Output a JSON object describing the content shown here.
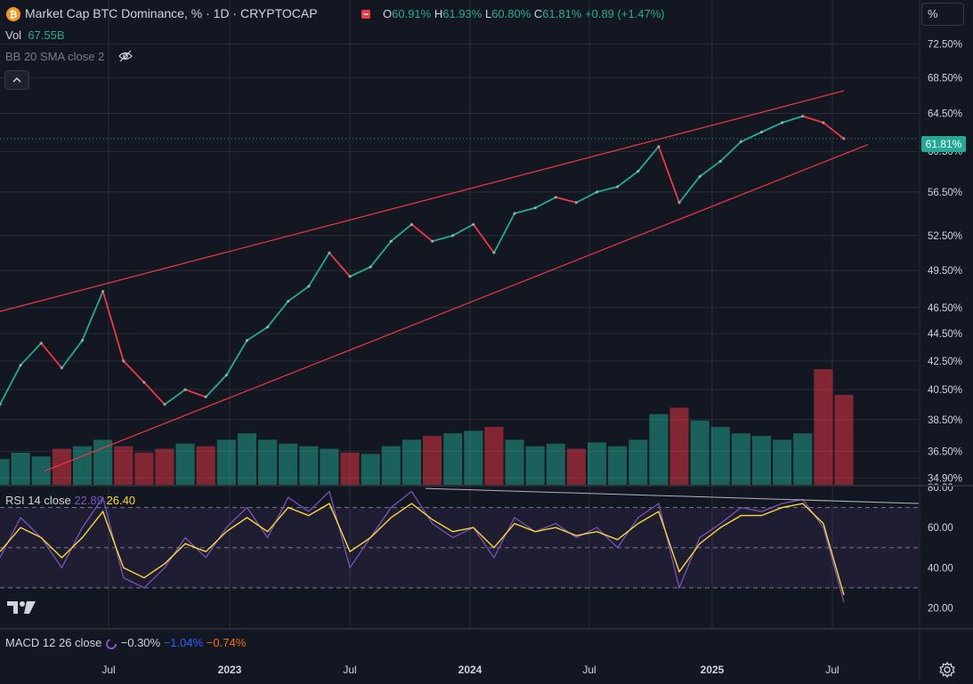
{
  "header": {
    "symbol_title": "Market Cap BTC Dominance, % · 1D · CRYPTOCAP",
    "ohlc": {
      "o_label": "O",
      "o_value": "60.91%",
      "h_label": "H",
      "h_value": "61.93%",
      "l_label": "L",
      "l_value": "60.80%",
      "c_label": "C",
      "c_value": "61.81%",
      "change": "+0.89 (+1.47%)"
    },
    "vol_label": "Vol",
    "vol_value": "67.55B",
    "bb_label": "BB 20 SMA close 2",
    "scale_mode": "%",
    "last_price_label": "61.81%"
  },
  "rsi_legend": {
    "label": "RSI 14 close",
    "value1": "22.89",
    "value2": "26.40"
  },
  "macd_legend": {
    "label": "MACD 12 26 close",
    "v1": "−0.30%",
    "v2": "−1.04%",
    "v3": "−0.74%"
  },
  "colors": {
    "up": "#22ab94",
    "down": "#f23645",
    "rsi": "#7e57c2",
    "rsi_ma": "#fdd835",
    "grid": "#2a2e39",
    "trend": "#f23645",
    "bg": "#131722"
  },
  "chart_data": [
    {
      "type": "line",
      "title": "Market Cap BTC Dominance, % · 1D · CRYPTOCAP",
      "y_scale": "log",
      "x_tick_labels": [
        "Jul",
        "2023",
        "Jul",
        "2024",
        "Jul",
        "2025",
        "Jul"
      ],
      "y_tick_labels": [
        "72.50%",
        "68.50%",
        "64.50%",
        "60.50%",
        "56.50%",
        "52.50%",
        "49.50%",
        "46.50%",
        "44.50%",
        "42.50%",
        "40.50%",
        "38.50%",
        "36.50%",
        "34.90%"
      ],
      "y_ticks": [
        72.5,
        68.5,
        64.5,
        60.5,
        56.5,
        52.5,
        49.5,
        46.5,
        44.5,
        42.5,
        40.5,
        38.5,
        36.5,
        34.9
      ],
      "last_value": 61.81,
      "x": [
        "2022-03",
        "2022-04",
        "2022-05",
        "2022-06",
        "2022-07",
        "2022-08",
        "2022-09",
        "2022-10",
        "2022-11",
        "2022-12",
        "2023-01",
        "2023-02",
        "2023-03",
        "2023-04",
        "2023-05",
        "2023-06",
        "2023-07",
        "2023-08",
        "2023-09",
        "2023-10",
        "2023-11",
        "2023-12",
        "2024-01",
        "2024-02",
        "2024-03",
        "2024-04",
        "2024-05",
        "2024-06",
        "2024-07",
        "2024-08",
        "2024-09",
        "2024-10",
        "2024-11",
        "2024-12",
        "2025-01",
        "2025-02",
        "2025-03",
        "2025-04",
        "2025-05",
        "2025-06",
        "2025-07",
        "2025-07-20"
      ],
      "values": [
        39.5,
        42.2,
        43.8,
        42.0,
        44.0,
        47.8,
        42.5,
        41.0,
        39.5,
        40.5,
        40.0,
        41.5,
        44.0,
        45.0,
        47.0,
        48.2,
        51.0,
        49.0,
        49.8,
        52.0,
        53.5,
        52.0,
        52.5,
        53.5,
        51.0,
        54.5,
        55.0,
        56.0,
        55.5,
        56.5,
        57.0,
        58.5,
        61.0,
        55.5,
        58.0,
        59.5,
        61.5,
        62.5,
        63.5,
        64.2,
        63.5,
        61.81
      ],
      "annotations": [
        "upper trend line",
        "lower trend line"
      ]
    },
    {
      "type": "bar",
      "title": "Vol",
      "last_value_label": "67.55B",
      "relative_values": [
        0.2,
        0.25,
        0.22,
        0.28,
        0.3,
        0.35,
        0.3,
        0.25,
        0.28,
        0.32,
        0.3,
        0.35,
        0.4,
        0.35,
        0.32,
        0.3,
        0.28,
        0.25,
        0.24,
        0.3,
        0.35,
        0.38,
        0.4,
        0.42,
        0.45,
        0.35,
        0.3,
        0.32,
        0.28,
        0.33,
        0.3,
        0.35,
        0.55,
        0.6,
        0.5,
        0.45,
        0.4,
        0.38,
        0.35,
        0.4,
        0.9,
        0.7
      ]
    },
    {
      "type": "line",
      "title": "RSI 14 close",
      "ylim": [
        10,
        80
      ],
      "y_tick_labels": [
        "80.00",
        "60.00",
        "40.00",
        "20.00"
      ],
      "y_ticks": [
        80,
        60,
        40,
        20
      ],
      "bands": [
        30,
        70
      ],
      "series": [
        {
          "name": "RSI 14 close",
          "values": [
            45,
            65,
            55,
            40,
            60,
            75,
            35,
            30,
            40,
            55,
            45,
            60,
            70,
            55,
            75,
            68,
            78,
            40,
            55,
            70,
            78,
            62,
            55,
            60,
            45,
            65,
            58,
            62,
            55,
            60,
            50,
            65,
            72,
            30,
            55,
            62,
            70,
            68,
            72,
            74,
            60,
            22.89
          ]
        },
        {
          "name": "RSI MA",
          "values": [
            48,
            60,
            55,
            45,
            55,
            68,
            40,
            35,
            42,
            52,
            48,
            58,
            65,
            58,
            70,
            66,
            72,
            48,
            55,
            65,
            72,
            64,
            58,
            60,
            50,
            62,
            58,
            60,
            56,
            58,
            54,
            62,
            68,
            38,
            52,
            60,
            66,
            66,
            70,
            72,
            62,
            26.4
          ]
        }
      ]
    }
  ]
}
